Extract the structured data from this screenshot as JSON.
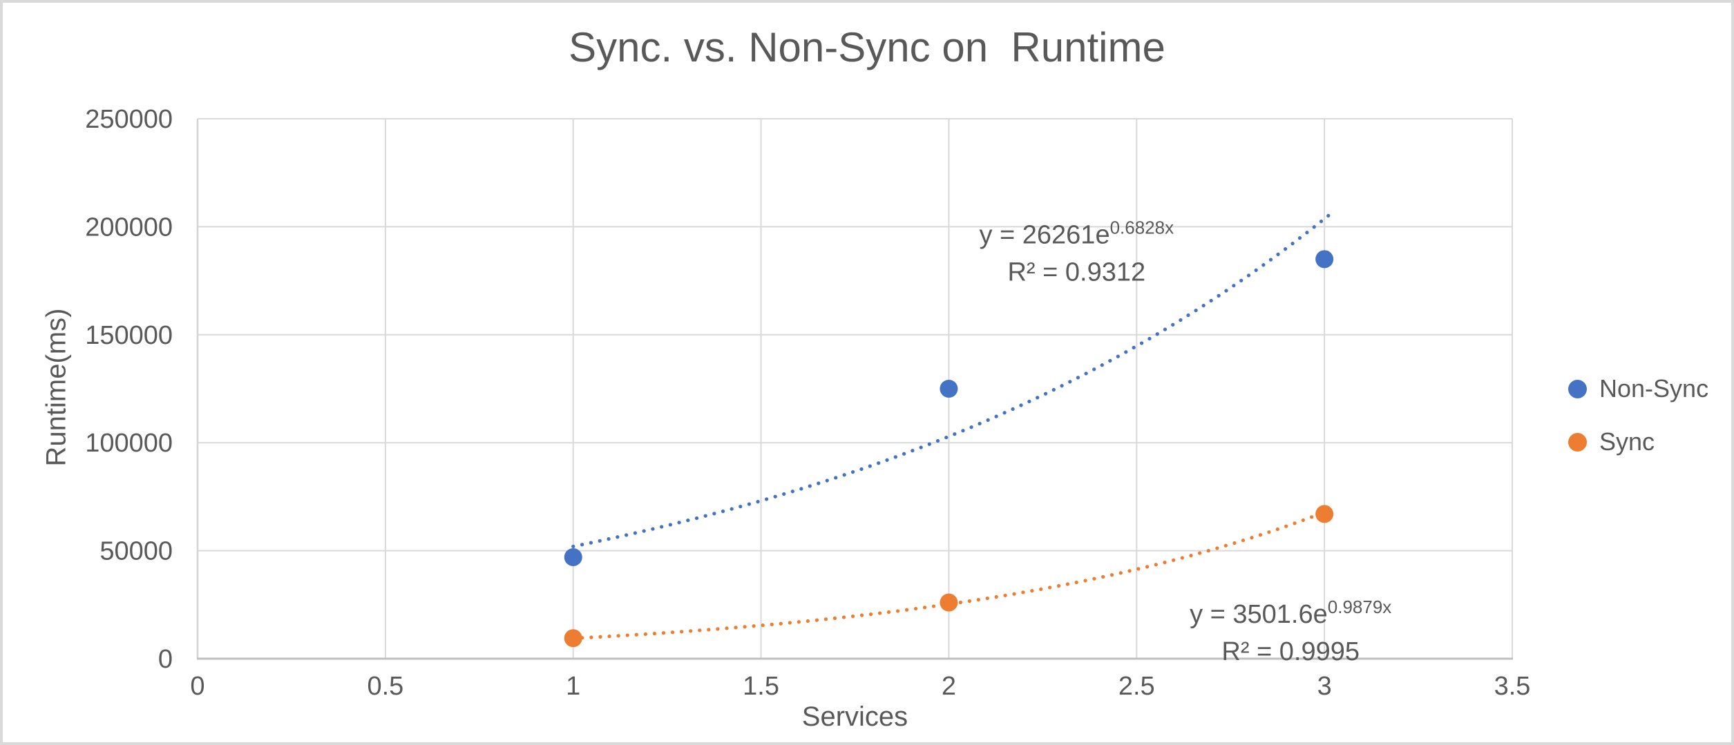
{
  "chart_data": {
    "type": "scatter",
    "title": "Sync. vs. Non-Sync on  Runtime",
    "xlabel": "Services",
    "ylabel": "Runtime(ms)",
    "xlim": [
      0,
      3.5
    ],
    "ylim": [
      0,
      250000
    ],
    "grid": true,
    "legend_position": "right",
    "x_ticks": [
      0,
      0.5,
      1,
      1.5,
      2,
      2.5,
      3,
      3.5
    ],
    "x_tick_labels": [
      "0",
      "0.5",
      "1",
      "1.5",
      "2",
      "2.5",
      "3",
      "3.5"
    ],
    "y_ticks": [
      0,
      50000,
      100000,
      150000,
      200000,
      250000
    ],
    "y_tick_labels": [
      "0",
      "50000",
      "100000",
      "150000",
      "200000",
      "250000"
    ],
    "series": [
      {
        "name": "Non-Sync",
        "color": "#4472C4",
        "x": [
          1,
          2,
          3
        ],
        "y": [
          47000,
          125000,
          185000
        ]
      },
      {
        "name": "Sync",
        "color": "#ED7D31",
        "x": [
          1,
          2,
          3
        ],
        "y": [
          9500,
          26000,
          67000
        ]
      }
    ],
    "trendlines": [
      {
        "series": "Non-Sync",
        "color": "#4472C4",
        "fit": "exponential",
        "a": 26261,
        "b": 0.6828,
        "x_range": [
          1,
          3.02
        ],
        "equation": "y = 26261e^0.6828x",
        "equation_base": "y = 26261e",
        "equation_exponent": "0.6828x",
        "r2": "R² = 0.9312",
        "label_at": {
          "x": 2.34,
          "y": 188500
        }
      },
      {
        "series": "Sync",
        "color": "#ED7D31",
        "fit": "exponential",
        "a": 3501.6,
        "b": 0.9879,
        "x_range": [
          1,
          3.0
        ],
        "equation": "y = 3501.6e^0.9879x",
        "equation_base": "y = 3501.6e",
        "equation_exponent": "0.9879x",
        "r2": "R² = 0.9995",
        "label_at": {
          "x": 2.91,
          "y": 12800
        }
      }
    ],
    "colors": {
      "gridline": "#D9D9D9",
      "axis_line": "#BFBFBF",
      "text": "#595959"
    }
  }
}
